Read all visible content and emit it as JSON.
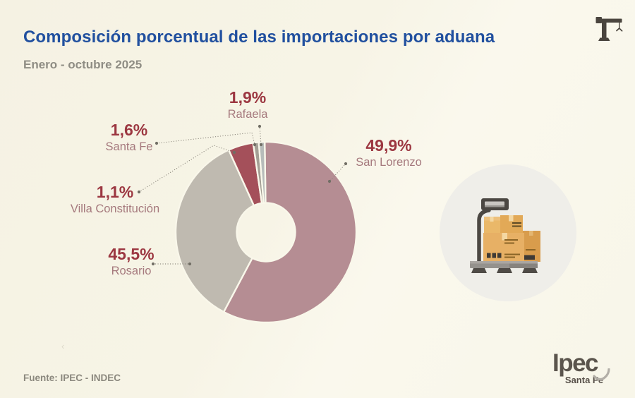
{
  "page": {
    "title": "Composición porcentual de las importaciones por aduana",
    "subtitle": "Enero - octubre 2025",
    "source": "Fuente: IPEC - INDEC",
    "watermark": "‹"
  },
  "logo": {
    "name": "Ipec",
    "region": "Santa Fe"
  },
  "icons": {
    "top_right": "crane-icon",
    "right_illustration": "cargo-scale-with-boxes-icon"
  },
  "colors": {
    "background": "#f7f4e6",
    "slice_gap": "#f9f7ea",
    "title_blue": "#21509f",
    "subtitle_gray": "#8f8d84",
    "percent_red": "#9c3741",
    "label_rose": "#a5797d",
    "leader_gray": "#8b887d",
    "illustration_circle": "#efeee9",
    "logo_gray": "#5b554d",
    "crane_dark": "#4a453e",
    "box_tan": "#e7b065",
    "platform_gray": "#95928d"
  },
  "chart_data": {
    "type": "pie",
    "donut": true,
    "title": "Composición porcentual de las importaciones por aduana",
    "subtitle": "Enero - octubre 2025",
    "unit": "%",
    "legend_position": "callout-labels",
    "categories": [
      "San Lorenzo",
      "Rosario",
      "Villa Constitución",
      "Santa Fe",
      "Rafaela"
    ],
    "values": [
      49.9,
      45.5,
      1.1,
      1.6,
      1.9
    ],
    "note": "drawn slice arcs follow the source infographic and are not exactly proportional to values",
    "segments": [
      {
        "label": "San Lorenzo",
        "value": 49.9,
        "display": "49,9%",
        "color": "#b58d93",
        "arc_start_deg": -0.8,
        "arc_end_deg": 207.9
      },
      {
        "label": "Rosario",
        "value": 45.5,
        "display": "45,5%",
        "color": "#bfbab0",
        "arc_start_deg": 207.9,
        "arc_end_deg": 335.6
      },
      {
        "label": "Villa Constitución",
        "value": 1.1,
        "display": "1,1%",
        "color": "#a4505a",
        "arc_start_deg": 335.6,
        "arc_end_deg": 351.8
      },
      {
        "label": "Santa Fe",
        "value": 1.6,
        "display": "1,6%",
        "color": "#a49f95",
        "arc_start_deg": 351.8,
        "arc_end_deg": 355.4
      },
      {
        "label": "Rafaela",
        "value": 1.9,
        "display": "1,9%",
        "color": "#b7bcba",
        "arc_start_deg": 355.4,
        "arc_end_deg": 359.2
      }
    ]
  }
}
